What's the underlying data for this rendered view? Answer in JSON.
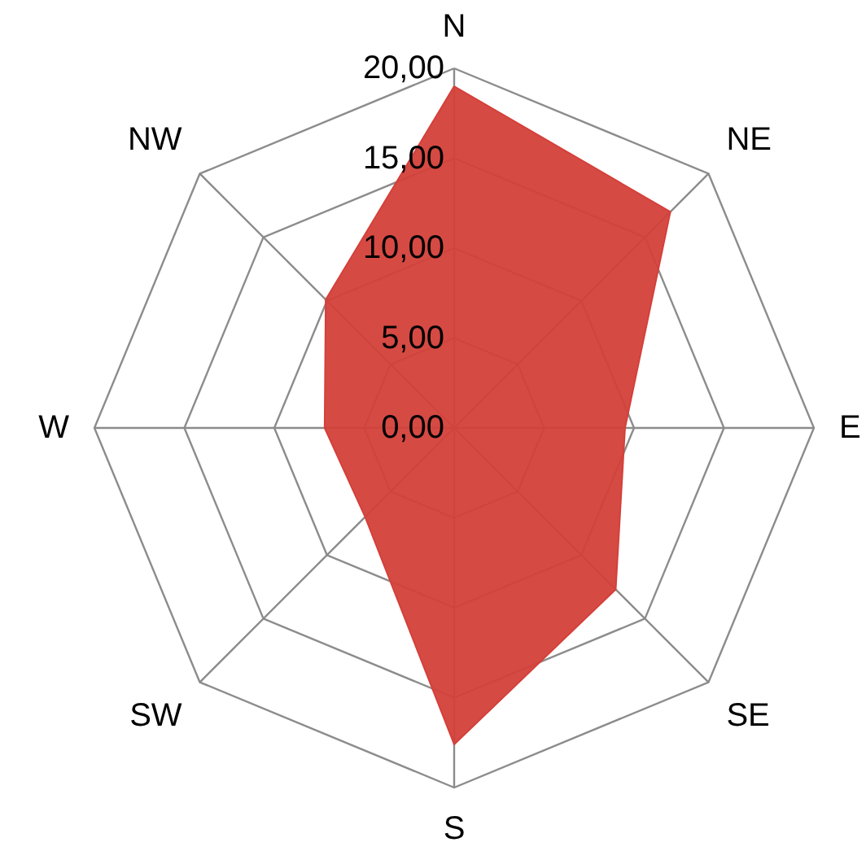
{
  "chart_data": {
    "type": "radar",
    "categories": [
      "N",
      "NE",
      "E",
      "SE",
      "S",
      "SW",
      "W",
      "NW"
    ],
    "series": [
      {
        "color": "#d4403a",
        "values": [
          19,
          17,
          9.5,
          12.7,
          17.6,
          7,
          7.2,
          10.1
        ]
      }
    ],
    "ylim": [
      0,
      20
    ],
    "yticks": [
      {
        "value": 0,
        "label": "0,00"
      },
      {
        "value": 5,
        "label": "5,00"
      },
      {
        "value": 10,
        "label": "10,00"
      },
      {
        "value": 15,
        "label": "15,00"
      },
      {
        "value": 20,
        "label": "20,00"
      }
    ],
    "grid": true
  }
}
